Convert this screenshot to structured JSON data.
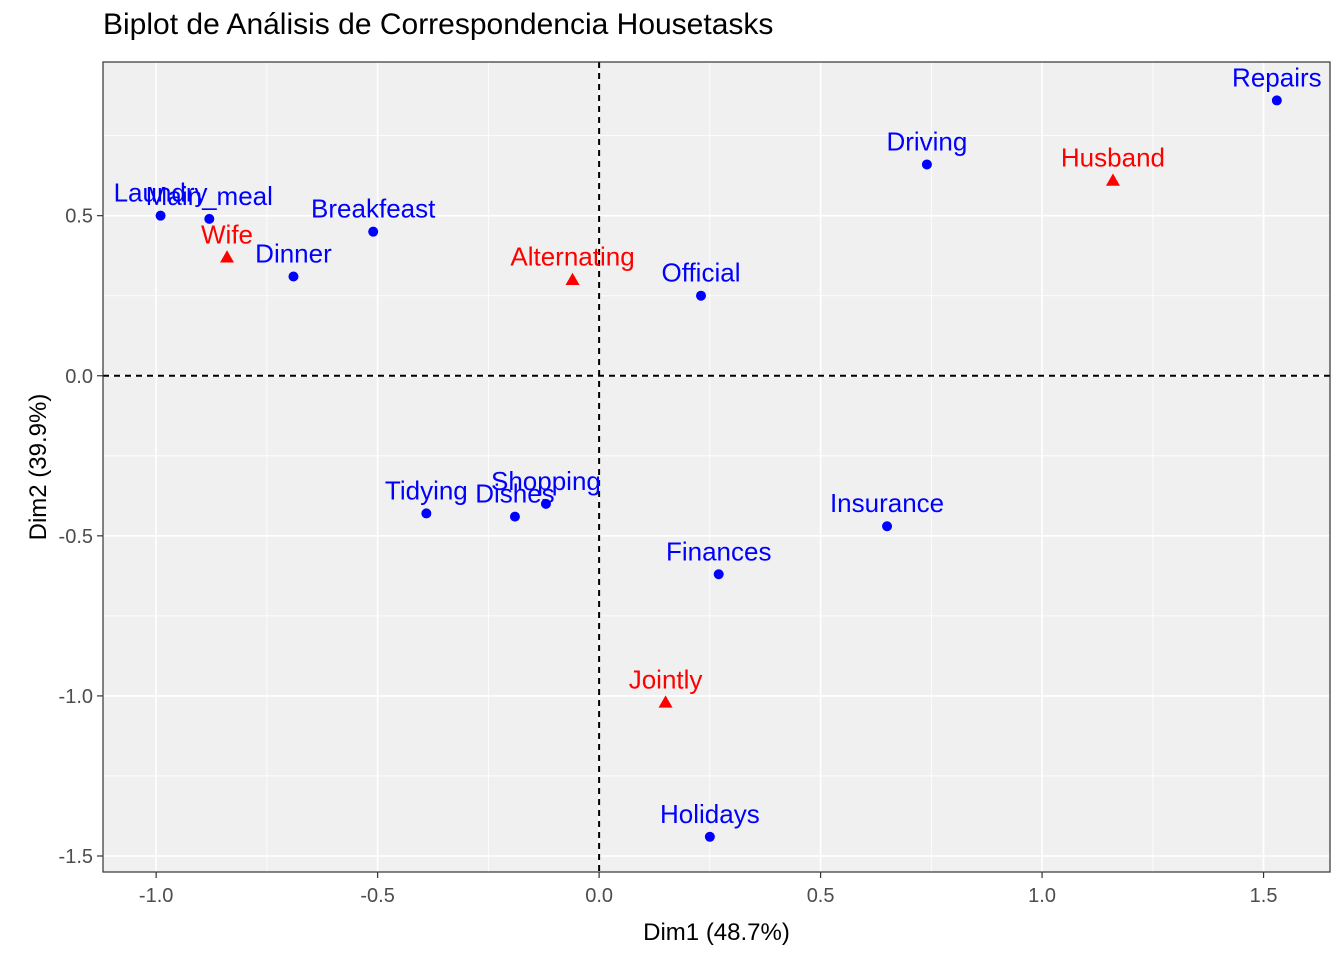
{
  "chart_data": {
    "type": "scatter",
    "title": "Biplot de Análisis de Correspondencia Housetasks",
    "xlabel": "Dim1 (48.7%)",
    "ylabel": "Dim2 (39.9%)",
    "xlim": [
      -1.12,
      1.65
    ],
    "ylim": [
      -1.55,
      0.98
    ],
    "x_ticks": [
      -1.0,
      -0.5,
      0.0,
      0.5,
      1.0,
      1.5
    ],
    "x_tick_labels": [
      "-1.0",
      "-0.5",
      "0.0",
      "0.5",
      "1.0",
      "1.5"
    ],
    "y_ticks": [
      -1.5,
      -1.0,
      -0.5,
      0.0,
      0.5
    ],
    "y_tick_labels": [
      "-1.5",
      "-1.0",
      "-0.5",
      "0.0",
      "0.5"
    ],
    "grid": true,
    "reference_lines": {
      "x": 0,
      "y": 0,
      "style": "dashed"
    },
    "colors": {
      "rows": "#0000ff",
      "columns": "#ff0000",
      "panel": "#f0f0f0",
      "grid": "#ffffff"
    },
    "series": [
      {
        "marker": "circle",
        "color": "#0000ff",
        "points": [
          {
            "label": "Laundry",
            "x": -0.99,
            "y": 0.5
          },
          {
            "label": "Main_meal",
            "x": -0.88,
            "y": 0.49
          },
          {
            "label": "Dinner",
            "x": -0.69,
            "y": 0.31
          },
          {
            "label": "Breakfeast",
            "x": -0.51,
            "y": 0.45
          },
          {
            "label": "Tidying",
            "x": -0.39,
            "y": -0.43
          },
          {
            "label": "Dishes",
            "x": -0.19,
            "y": -0.44
          },
          {
            "label": "Shopping",
            "x": -0.12,
            "y": -0.4
          },
          {
            "label": "Official",
            "x": 0.23,
            "y": 0.25
          },
          {
            "label": "Driving",
            "x": 0.74,
            "y": 0.66
          },
          {
            "label": "Finances",
            "x": 0.27,
            "y": -0.62
          },
          {
            "label": "Insurance",
            "x": 0.65,
            "y": -0.47
          },
          {
            "label": "Repairs",
            "x": 1.53,
            "y": 0.86
          },
          {
            "label": "Holidays",
            "x": 0.25,
            "y": -1.44
          }
        ]
      },
      {
        "marker": "triangle",
        "color": "#ff0000",
        "points": [
          {
            "label": "Wife",
            "x": -0.84,
            "y": 0.37
          },
          {
            "label": "Alternating",
            "x": -0.06,
            "y": 0.3
          },
          {
            "label": "Jointly",
            "x": 0.15,
            "y": -1.02
          },
          {
            "label": "Husband",
            "x": 1.16,
            "y": 0.61
          }
        ]
      }
    ]
  }
}
